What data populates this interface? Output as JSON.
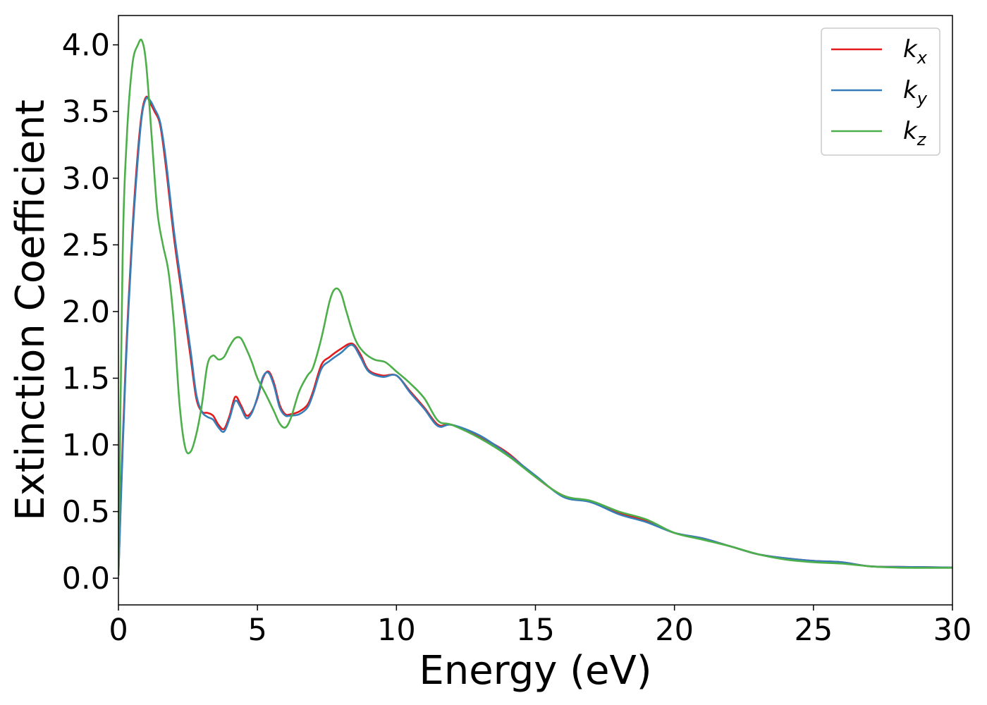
{
  "chart_data": {
    "type": "line",
    "title": "",
    "xlabel": "Energy (eV)",
    "ylabel": "Extinction Coefficient",
    "xlim": [
      0,
      30
    ],
    "ylim": [
      -0.2,
      4.22
    ],
    "xticks": [
      0,
      5,
      10,
      15,
      20,
      25,
      30
    ],
    "xtick_labels": [
      "0",
      "5",
      "10",
      "15",
      "20",
      "25",
      "30"
    ],
    "yticks": [
      0.0,
      0.5,
      1.0,
      1.5,
      2.0,
      2.5,
      3.0,
      3.5,
      4.0
    ],
    "ytick_labels": [
      "0.0",
      "0.5",
      "1.0",
      "1.5",
      "2.0",
      "2.5",
      "3.0",
      "3.5",
      "4.0"
    ],
    "grid": false,
    "legend_position": "top-right",
    "series": [
      {
        "name": "k",
        "subscript": "x",
        "color": "#e41a1c",
        "x": [
          0,
          0.15,
          0.3,
          0.5,
          0.7,
          0.85,
          1.0,
          1.15,
          1.3,
          1.5,
          1.7,
          2.0,
          2.3,
          2.6,
          2.8,
          3.0,
          3.2,
          3.4,
          3.6,
          3.8,
          4.0,
          4.2,
          4.4,
          4.6,
          4.8,
          5.0,
          5.2,
          5.4,
          5.6,
          5.8,
          6.0,
          6.2,
          6.5,
          6.8,
          7.0,
          7.3,
          7.6,
          8.0,
          8.4,
          8.7,
          9.0,
          9.5,
          10.0,
          10.5,
          11.0,
          11.5,
          12.0,
          13.0,
          14.0,
          15.0,
          16.0,
          17.0,
          18.0,
          19.0,
          20.0,
          21.0,
          22.0,
          23.0,
          24.0,
          25.0,
          26.0,
          27.0,
          28.0,
          29.0,
          30.0
        ],
        "y": [
          0.02,
          1.0,
          1.8,
          2.6,
          3.2,
          3.5,
          3.61,
          3.56,
          3.5,
          3.4,
          3.1,
          2.55,
          2.1,
          1.65,
          1.35,
          1.25,
          1.24,
          1.22,
          1.15,
          1.12,
          1.22,
          1.36,
          1.3,
          1.22,
          1.25,
          1.35,
          1.5,
          1.55,
          1.46,
          1.3,
          1.23,
          1.23,
          1.25,
          1.3,
          1.4,
          1.6,
          1.66,
          1.72,
          1.76,
          1.68,
          1.56,
          1.52,
          1.52,
          1.4,
          1.28,
          1.15,
          1.15,
          1.06,
          0.94,
          0.76,
          0.62,
          0.57,
          0.49,
          0.43,
          0.34,
          0.3,
          0.24,
          0.18,
          0.15,
          0.13,
          0.12,
          0.09,
          0.085,
          0.083,
          0.08
        ]
      },
      {
        "name": "k",
        "subscript": "y",
        "color": "#377eb8",
        "x": [
          0,
          0.15,
          0.3,
          0.5,
          0.7,
          0.85,
          1.0,
          1.15,
          1.3,
          1.5,
          1.7,
          2.0,
          2.3,
          2.6,
          2.8,
          3.0,
          3.2,
          3.4,
          3.6,
          3.8,
          4.0,
          4.2,
          4.4,
          4.6,
          4.8,
          5.0,
          5.2,
          5.4,
          5.6,
          5.8,
          6.0,
          6.2,
          6.5,
          6.8,
          7.0,
          7.3,
          7.6,
          8.0,
          8.4,
          8.7,
          9.0,
          9.5,
          10.0,
          10.5,
          11.0,
          11.5,
          12.0,
          13.0,
          14.0,
          15.0,
          16.0,
          17.0,
          18.0,
          19.0,
          20.0,
          21.0,
          22.0,
          23.0,
          24.0,
          25.0,
          26.0,
          27.0,
          28.0,
          29.0,
          30.0
        ],
        "y": [
          0.02,
          0.95,
          1.75,
          2.55,
          3.15,
          3.48,
          3.6,
          3.58,
          3.52,
          3.42,
          3.15,
          2.6,
          2.15,
          1.7,
          1.38,
          1.25,
          1.21,
          1.19,
          1.13,
          1.1,
          1.2,
          1.33,
          1.28,
          1.2,
          1.24,
          1.36,
          1.51,
          1.54,
          1.44,
          1.28,
          1.22,
          1.22,
          1.23,
          1.28,
          1.38,
          1.57,
          1.63,
          1.69,
          1.75,
          1.66,
          1.55,
          1.51,
          1.52,
          1.39,
          1.27,
          1.14,
          1.15,
          1.07,
          0.93,
          0.77,
          0.61,
          0.57,
          0.48,
          0.42,
          0.34,
          0.3,
          0.24,
          0.18,
          0.15,
          0.13,
          0.12,
          0.09,
          0.085,
          0.083,
          0.08
        ]
      },
      {
        "name": "k",
        "subscript": "z",
        "color": "#4daf4a",
        "x": [
          0,
          0.15,
          0.3,
          0.5,
          0.7,
          0.85,
          1.0,
          1.2,
          1.4,
          1.6,
          1.8,
          2.0,
          2.2,
          2.4,
          2.6,
          2.8,
          3.0,
          3.2,
          3.4,
          3.6,
          3.8,
          4.0,
          4.2,
          4.4,
          4.6,
          4.8,
          5.0,
          5.3,
          5.6,
          5.8,
          6.0,
          6.2,
          6.5,
          6.8,
          7.0,
          7.3,
          7.6,
          7.8,
          8.0,
          8.2,
          8.5,
          8.8,
          9.2,
          9.6,
          10.0,
          10.5,
          11.0,
          11.5,
          12.0,
          13.0,
          14.0,
          15.0,
          16.0,
          17.0,
          18.0,
          19.0,
          20.0,
          21.0,
          22.0,
          23.0,
          24.0,
          25.0,
          26.0,
          27.0,
          28.0,
          29.0,
          30.0
        ],
        "y": [
          0.02,
          2.4,
          3.3,
          3.85,
          4.0,
          4.03,
          3.85,
          3.3,
          2.75,
          2.5,
          2.3,
          1.9,
          1.3,
          0.98,
          0.95,
          1.08,
          1.3,
          1.6,
          1.67,
          1.64,
          1.66,
          1.74,
          1.8,
          1.8,
          1.72,
          1.62,
          1.5,
          1.38,
          1.25,
          1.16,
          1.13,
          1.2,
          1.4,
          1.52,
          1.58,
          1.8,
          2.08,
          2.17,
          2.14,
          2.0,
          1.8,
          1.7,
          1.64,
          1.62,
          1.55,
          1.46,
          1.35,
          1.18,
          1.15,
          1.05,
          0.92,
          0.76,
          0.62,
          0.58,
          0.5,
          0.44,
          0.34,
          0.29,
          0.24,
          0.18,
          0.14,
          0.12,
          0.11,
          0.09,
          0.08,
          0.078,
          0.078
        ]
      }
    ]
  }
}
